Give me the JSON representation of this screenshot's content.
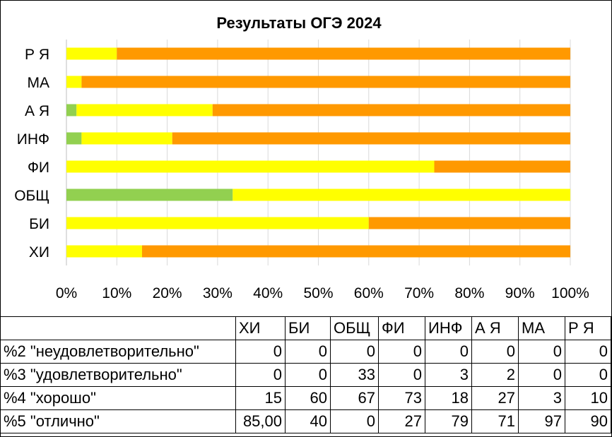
{
  "chart_data": {
    "type": "bar",
    "orientation": "horizontal",
    "stacked": "percent",
    "title": "Результаты ОГЭ 2024",
    "categories": [
      "ХИ",
      "БИ",
      "ОБЩ",
      "ФИ",
      "ИНФ",
      "А Я",
      "МА",
      "Р Я"
    ],
    "series": [
      {
        "name": "%2 \"неудовлетворительно\"",
        "values": [
          0,
          0,
          0,
          0,
          0,
          0,
          0,
          0
        ],
        "color": "#2e75b6"
      },
      {
        "name": "%3 \"удовлетворительно\"",
        "values": [
          0,
          0,
          33,
          0,
          3,
          2,
          0,
          0
        ],
        "color": "#92d050"
      },
      {
        "name": "%4 \"хорошо\"",
        "values": [
          15,
          60,
          67,
          73,
          18,
          27,
          3,
          10
        ],
        "color": "#ffff00"
      },
      {
        "name": "%5 \"отлично\"",
        "values": [
          85,
          40,
          0,
          27,
          79,
          71,
          97,
          90
        ],
        "color": "#ff9900"
      }
    ],
    "xticks": [
      "0%",
      "10%",
      "20%",
      "30%",
      "40%",
      "50%",
      "60%",
      "70%",
      "80%",
      "90%",
      "100%"
    ],
    "xlim": [
      0,
      100
    ],
    "grid": true,
    "legend": "table below chart"
  },
  "table": {
    "headers": [
      "ХИ",
      "БИ",
      "ОБЩ",
      "ФИ",
      "ИНФ",
      "А Я",
      "МА",
      "Р Я"
    ],
    "rows": [
      {
        "label": "%2 \"неудовлетворительно\"",
        "cells": [
          "0",
          "0",
          "0",
          "0",
          "0",
          "0",
          "0",
          "0"
        ]
      },
      {
        "label": "%3 \"удовлетворительно\"",
        "cells": [
          "0",
          "0",
          "33",
          "0",
          "3",
          "2",
          "0",
          "0"
        ]
      },
      {
        "label": "%4 \"хорошо\"",
        "cells": [
          "15",
          "60",
          "67",
          "73",
          "18",
          "27",
          "3",
          "10"
        ]
      },
      {
        "label": "%5 \"отлично\"",
        "cells": [
          "85,00",
          "40",
          "0",
          "27",
          "79",
          "71",
          "97",
          "90"
        ]
      }
    ]
  }
}
